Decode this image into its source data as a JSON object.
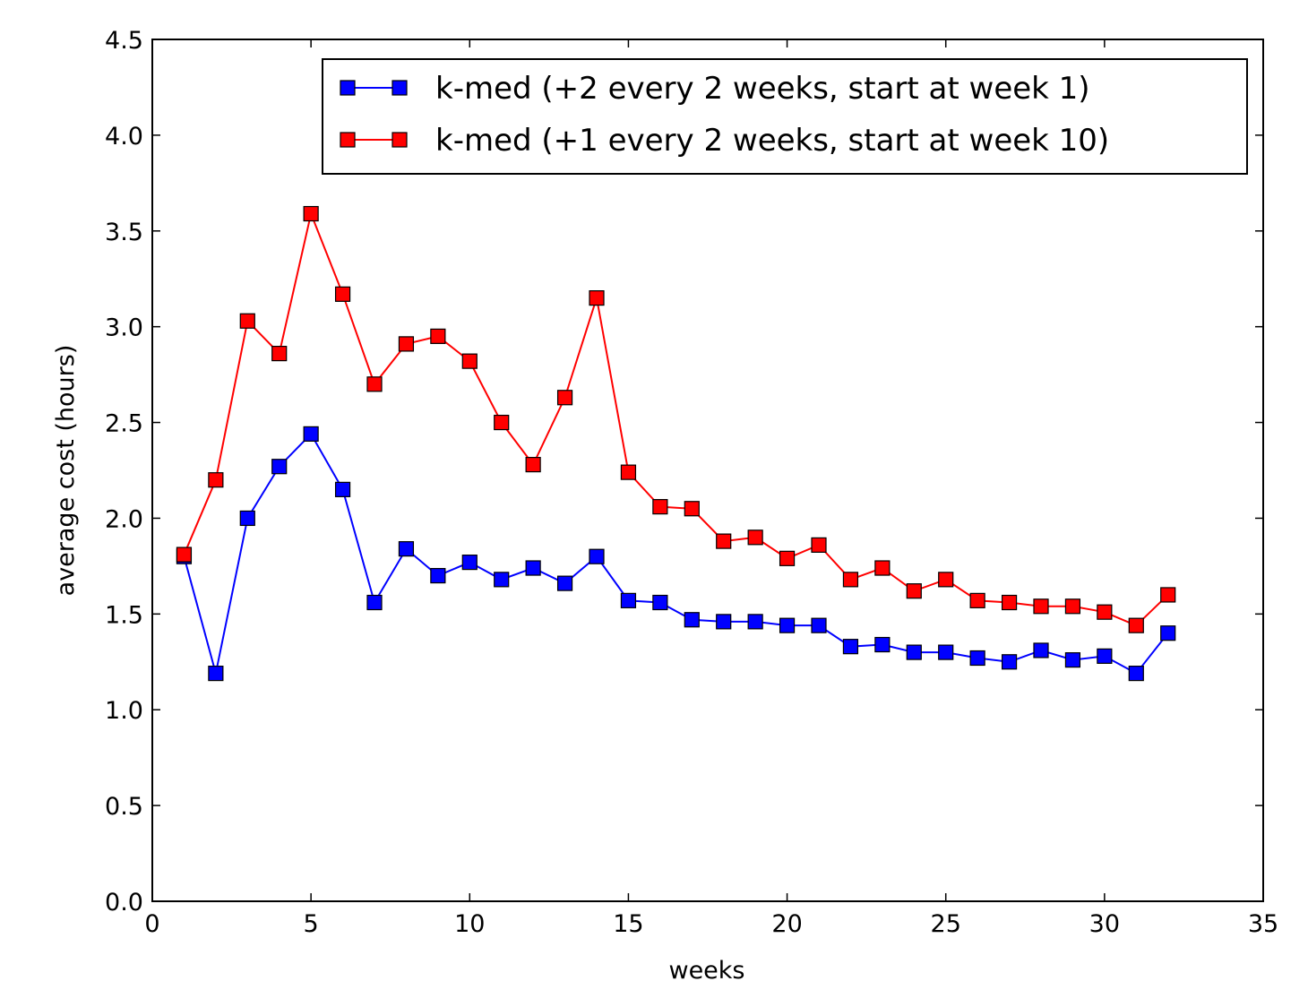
{
  "chart_data": {
    "type": "line",
    "title": "",
    "xlabel": "weeks",
    "ylabel": "average cost (hours)",
    "xlim": [
      0,
      35
    ],
    "ylim": [
      0.0,
      4.5
    ],
    "xticks": [
      0,
      5,
      10,
      15,
      20,
      25,
      30,
      35
    ],
    "xtick_labels": [
      "0",
      "5",
      "10",
      "15",
      "20",
      "25",
      "30",
      "35"
    ],
    "yticks": [
      0.0,
      0.5,
      1.0,
      1.5,
      2.0,
      2.5,
      3.0,
      3.5,
      4.0,
      4.5
    ],
    "ytick_labels": [
      "0.0",
      "0.5",
      "1.0",
      "1.5",
      "2.0",
      "2.5",
      "3.0",
      "3.5",
      "4.0",
      "4.5"
    ],
    "grid": false,
    "legend_position": "top-right",
    "x": [
      1,
      2,
      3,
      4,
      5,
      6,
      7,
      8,
      9,
      10,
      11,
      12,
      13,
      14,
      15,
      16,
      17,
      18,
      19,
      20,
      21,
      22,
      23,
      24,
      25,
      26,
      27,
      28,
      29,
      30,
      31,
      32
    ],
    "series": [
      {
        "name": "k-med (+2 every 2 weeks, start at week 1)",
        "color": "#0000ff",
        "marker": "square",
        "values": [
          1.8,
          1.19,
          2.0,
          2.27,
          2.44,
          2.15,
          1.56,
          1.84,
          1.7,
          1.77,
          1.68,
          1.74,
          1.66,
          1.8,
          1.57,
          1.56,
          1.47,
          1.46,
          1.46,
          1.44,
          1.44,
          1.33,
          1.34,
          1.3,
          1.3,
          1.27,
          1.25,
          1.31,
          1.26,
          1.28,
          1.19,
          1.4
        ]
      },
      {
        "name": "k-med (+1 every 2 weeks, start at week 10)",
        "color": "#ff0000",
        "marker": "square",
        "values": [
          1.81,
          2.2,
          3.03,
          2.86,
          3.59,
          3.17,
          2.7,
          2.91,
          2.95,
          2.82,
          2.5,
          2.28,
          2.63,
          3.15,
          2.24,
          2.06,
          2.05,
          1.88,
          1.9,
          1.79,
          1.86,
          1.68,
          1.74,
          1.62,
          1.68,
          1.57,
          1.56,
          1.54,
          1.54,
          1.51,
          1.44,
          1.6
        ]
      }
    ]
  }
}
